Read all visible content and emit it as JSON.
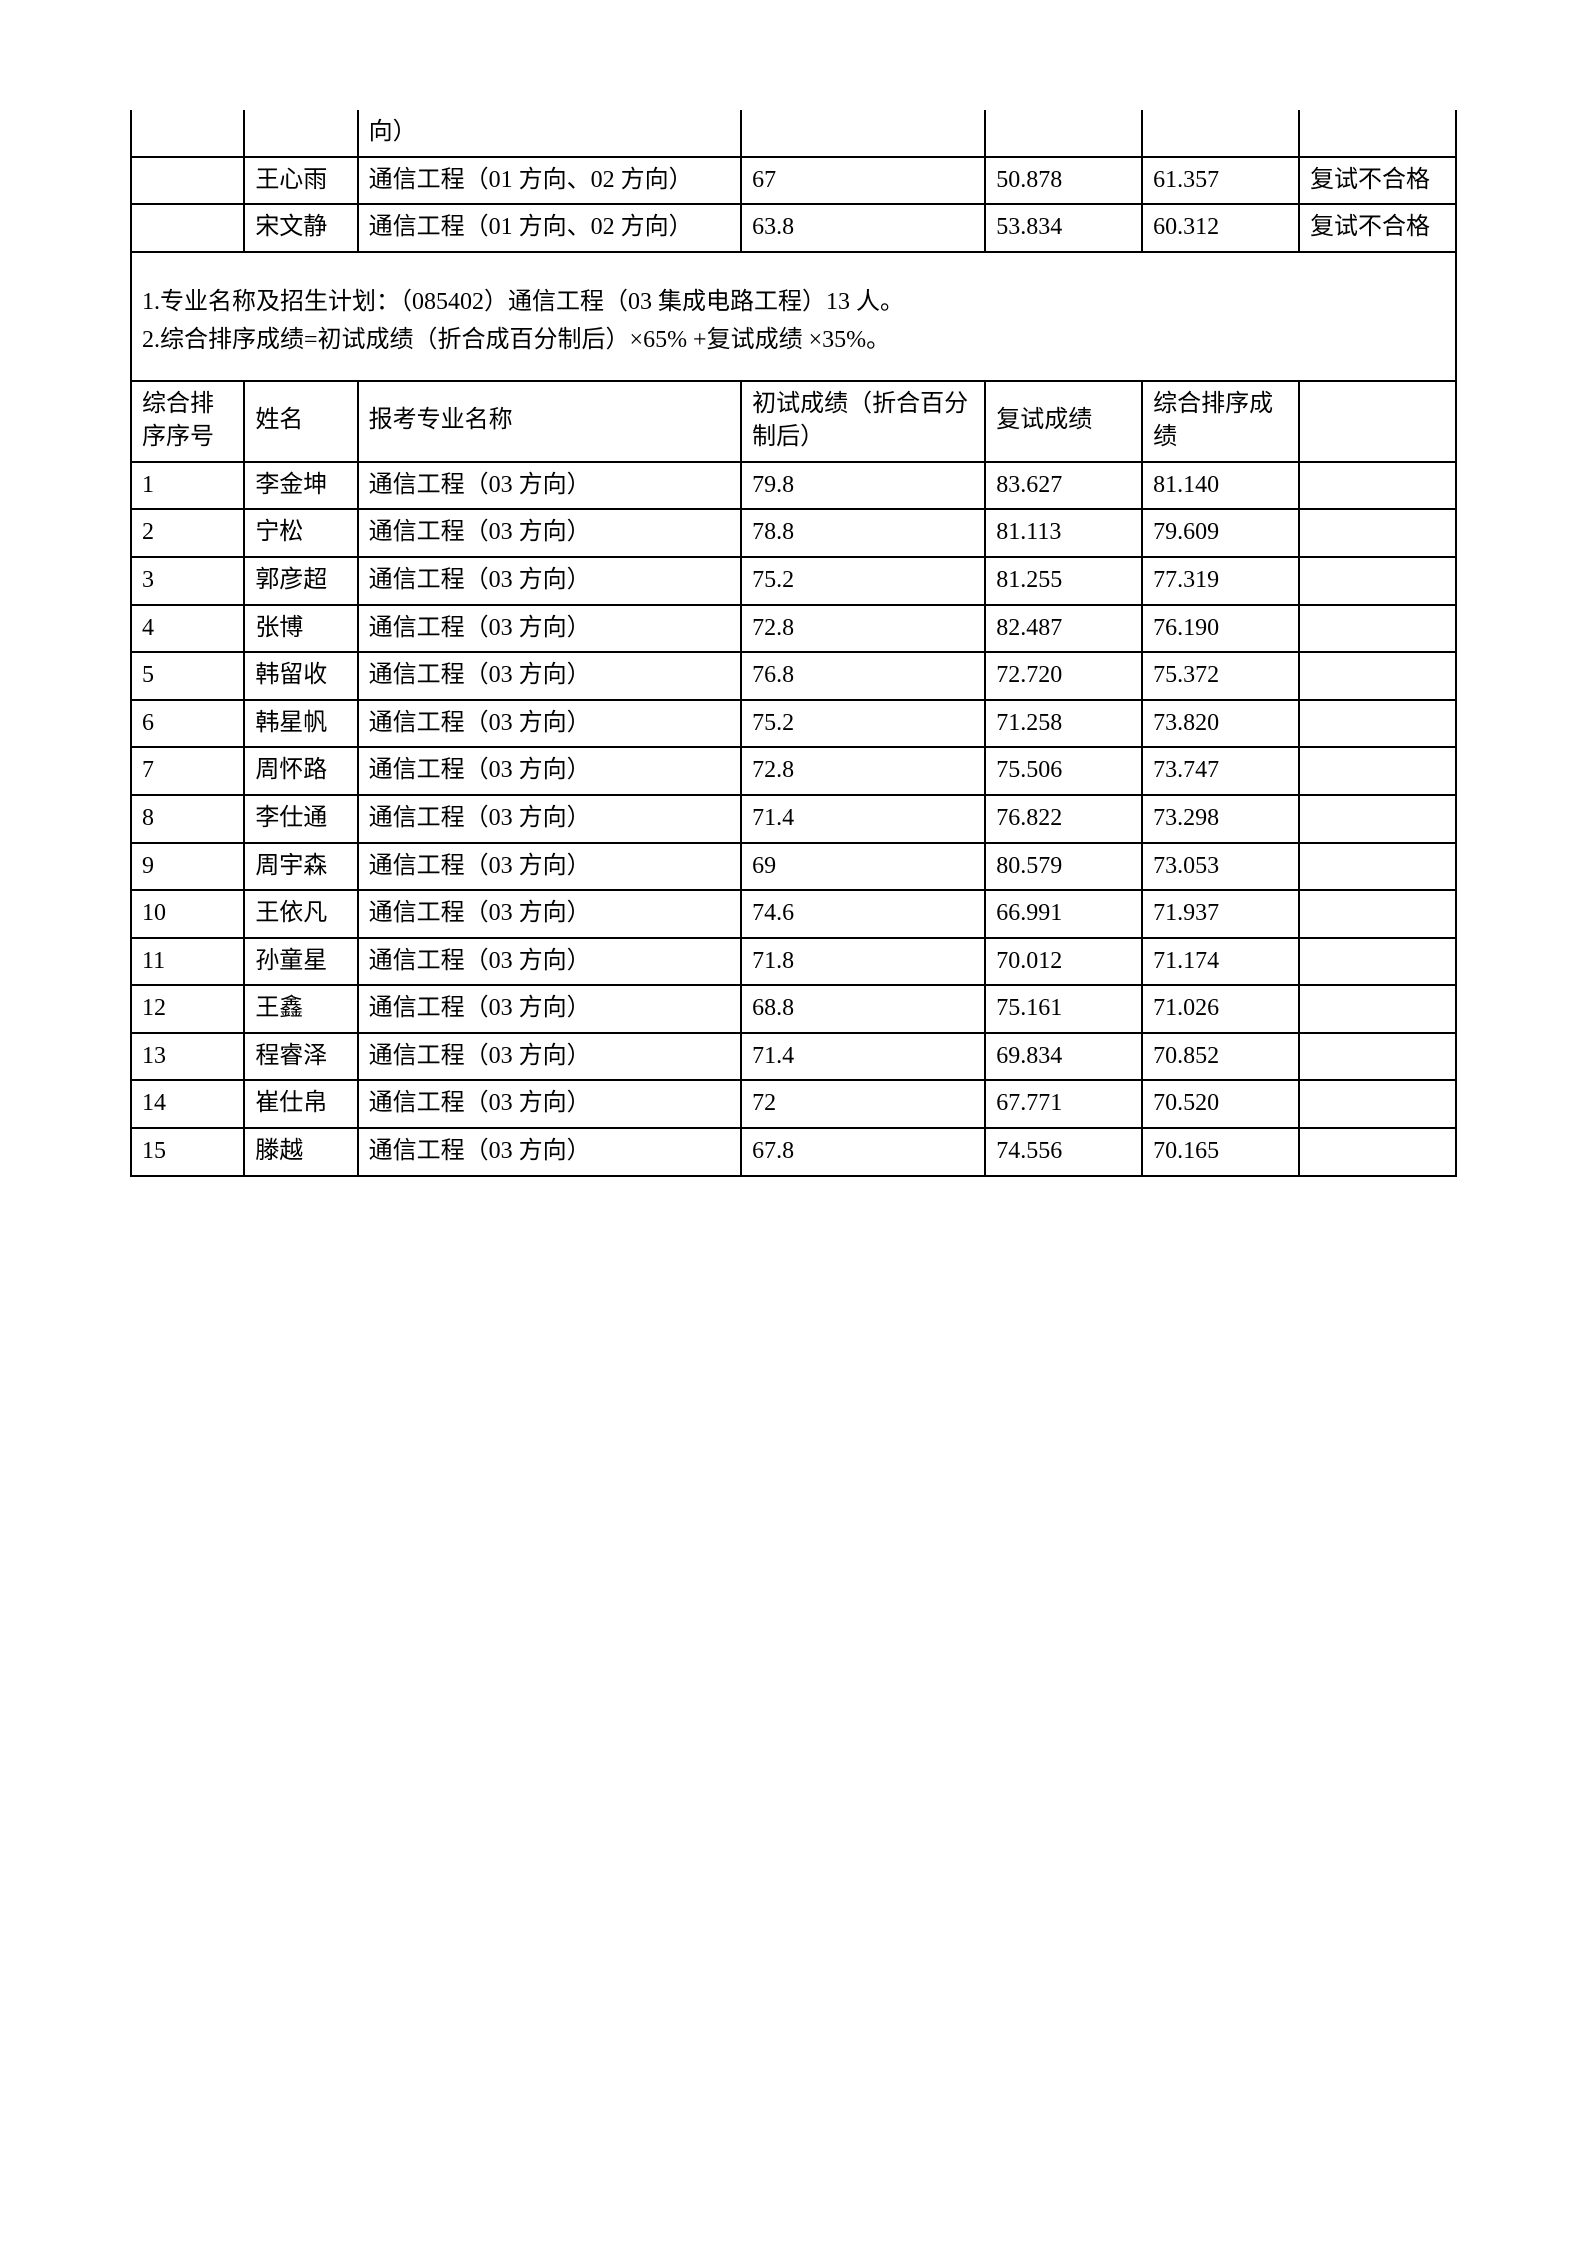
{
  "top_table": {
    "partial_row": {
      "major_tail": "向）",
      "col1": "",
      "col2": "",
      "col4": "",
      "col5": "",
      "col6": "",
      "col7": ""
    },
    "rows": [
      {
        "rank": "",
        "name": "王心雨",
        "major": "通信工程（01 方向、02 方向）",
        "score1": "67",
        "score2": "50.878",
        "score3": "61.357",
        "remark": "复试不合格"
      },
      {
        "rank": "",
        "name": "宋文静",
        "major": "通信工程（01 方向、02 方向）",
        "score1": "63.8",
        "score2": "53.834",
        "score3": "60.312",
        "remark": "复试不合格"
      }
    ]
  },
  "notes": {
    "line1": "1.专业名称及招生计划：（085402）通信工程（03 集成电路工程）13 人。",
    "line2": "2.综合排序成绩=初试成绩（折合成百分制后）×65%  +复试成绩 ×35%。"
  },
  "main_table": {
    "header": {
      "rank": "综合排序序号",
      "name": "姓名",
      "major": "报考专业名称",
      "score1": "初试成绩（折合百分制后）",
      "score2": "复试成绩",
      "score3": "综合排序成绩",
      "remark": ""
    },
    "rows": [
      {
        "rank": "1",
        "name": "李金坤",
        "major": "通信工程（03 方向）",
        "score1": "79.8",
        "score2": "83.627",
        "score3": "81.140",
        "remark": ""
      },
      {
        "rank": "2",
        "name": "宁松",
        "major": "通信工程（03 方向）",
        "score1": "78.8",
        "score2": "81.113",
        "score3": "79.609",
        "remark": ""
      },
      {
        "rank": "3",
        "name": "郭彦超",
        "major": "通信工程（03 方向）",
        "score1": "75.2",
        "score2": "81.255",
        "score3": "77.319",
        "remark": ""
      },
      {
        "rank": "4",
        "name": "张博",
        "major": "通信工程（03 方向）",
        "score1": "72.8",
        "score2": "82.487",
        "score3": "76.190",
        "remark": ""
      },
      {
        "rank": "5",
        "name": "韩留收",
        "major": "通信工程（03 方向）",
        "score1": "76.8",
        "score2": "72.720",
        "score3": "75.372",
        "remark": ""
      },
      {
        "rank": "6",
        "name": "韩星帆",
        "major": "通信工程（03 方向）",
        "score1": "75.2",
        "score2": "71.258",
        "score3": "73.820",
        "remark": ""
      },
      {
        "rank": "7",
        "name": "周怀路",
        "major": "通信工程（03 方向）",
        "score1": "72.8",
        "score2": "75.506",
        "score3": "73.747",
        "remark": ""
      },
      {
        "rank": "8",
        "name": "李仕通",
        "major": "通信工程（03 方向）",
        "score1": "71.4",
        "score2": "76.822",
        "score3": "73.298",
        "remark": ""
      },
      {
        "rank": "9",
        "name": "周宇森",
        "major": "通信工程（03 方向）",
        "score1": "69",
        "score2": "80.579",
        "score3": "73.053",
        "remark": ""
      },
      {
        "rank": "10",
        "name": "王依凡",
        "major": "通信工程（03 方向）",
        "score1": "74.6",
        "score2": "66.991",
        "score3": "71.937",
        "remark": ""
      },
      {
        "rank": "11",
        "name": "孙童星",
        "major": "通信工程（03 方向）",
        "score1": "71.8",
        "score2": "70.012",
        "score3": "71.174",
        "remark": ""
      },
      {
        "rank": "12",
        "name": "王鑫",
        "major": "通信工程（03 方向）",
        "score1": "68.8",
        "score2": "75.161",
        "score3": "71.026",
        "remark": ""
      },
      {
        "rank": "13",
        "name": "程睿泽",
        "major": "通信工程（03 方向）",
        "score1": "71.4",
        "score2": "69.834",
        "score3": "70.852",
        "remark": ""
      },
      {
        "rank": "14",
        "name": "崔仕帛",
        "major": "通信工程（03 方向）",
        "score1": "72",
        "score2": "67.771",
        "score3": "70.520",
        "remark": ""
      },
      {
        "rank": "15",
        "name": "滕越",
        "major": "通信工程（03 方向）",
        "score1": "67.8",
        "score2": "74.556",
        "score3": "70.165",
        "remark": ""
      }
    ]
  },
  "style": {
    "border_color": "#000000",
    "background_color": "#ffffff",
    "font_size": 24,
    "font_family": "SimSun"
  }
}
